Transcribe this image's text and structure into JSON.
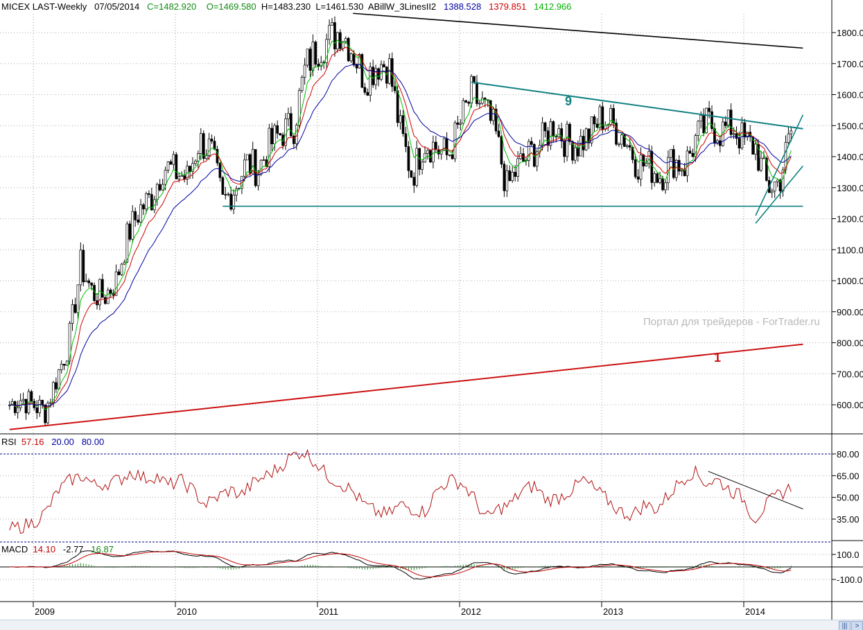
{
  "header": {
    "symbol": "MICEX LAST-Weekly",
    "date": "07/05/2014",
    "close": "C=1482.920",
    "open": "O=1469.580",
    "high": "H=1483.230",
    "low": "L=1461.530",
    "indicator": "ABillW_3LinesII2",
    "ma_blue": "1388.528",
    "ma_red": "1379.851",
    "ma_green": "1412.966"
  },
  "rsi_header": {
    "label": "RSI",
    "value": "57.16",
    "low": "20.00",
    "high": "80.00"
  },
  "macd_header": {
    "label": "MACD",
    "value": "14.10",
    "signal": "-2.77",
    "hist": "16.87"
  },
  "watermark": "Портал для трейдеров - ForTrader.ru",
  "colors": {
    "up": "#ffffff",
    "down": "#000000",
    "ma_green": "#00c000",
    "ma_red": "#d00000",
    "ma_blue": "#0000a0",
    "teal": "#108080",
    "trend_red": "#cc1010",
    "rsi": "#b01010"
  },
  "chart_data": [
    {
      "type": "candlestick",
      "title": "MICEX LAST-Weekly",
      "start": "2008-11",
      "interval": "month (sampled, weekly bars)",
      "close": [
        600,
        620,
        600,
        580,
        690,
        800,
        1050,
        960,
        950,
        1000,
        1150,
        1230,
        1270,
        1370,
        1350,
        1330,
        1450,
        1420,
        1250,
        1300,
        1380,
        1360,
        1440,
        1480,
        1500,
        1690,
        1750,
        1780,
        1810,
        1740,
        1650,
        1700,
        1700,
        1480,
        1340,
        1450,
        1430,
        1400,
        1500,
        1600,
        1560,
        1480,
        1300,
        1370,
        1410,
        1450,
        1510,
        1450,
        1440,
        1470,
        1530,
        1500,
        1460,
        1380,
        1370,
        1340,
        1390,
        1370,
        1460,
        1510,
        1480,
        1500,
        1450,
        1430,
        1300,
        1320,
        1483
      ],
      "yticks": [
        "1800.00",
        "1700.00",
        "1600.00",
        "1500.00",
        "1400.00",
        "1300.00",
        "1200.00",
        "1100.00",
        "1000.00",
        "900.00",
        "800.00",
        "700.00",
        "600.00"
      ],
      "ylim": [
        520,
        1900
      ],
      "xticks": [
        "2009",
        "2010",
        "2011",
        "2012",
        "2013",
        "2014"
      ],
      "trendlines": [
        {
          "name": "resistance-long",
          "from": [
            "2011-04",
            1862
          ],
          "to": [
            "2014-06",
            1750
          ],
          "color": "#000000"
        },
        {
          "name": "resistance-9",
          "from": [
            "2012-02",
            1640
          ],
          "to": [
            "2014-06",
            1490
          ],
          "color": "#108080",
          "label": "9"
        },
        {
          "name": "support",
          "from": [
            "2010-05",
            1240
          ],
          "to": [
            "2014-06",
            1240
          ],
          "color": "#108080"
        },
        {
          "name": "long-term-1",
          "from": [
            "2008-11",
            520
          ],
          "to": [
            "2014-06",
            795
          ],
          "color": "#cc1010",
          "label": "1"
        },
        {
          "name": "channel-low",
          "from": [
            "2014-02",
            1185
          ],
          "to": [
            "2014-06",
            1370
          ],
          "color": "#108080"
        },
        {
          "name": "channel-high",
          "from": [
            "2014-02",
            1210
          ],
          "to": [
            "2014-06",
            1535
          ],
          "color": "#108080"
        }
      ]
    },
    {
      "type": "line",
      "title": "RSI",
      "yticks": [
        "80.00",
        "65.00",
        "50.00",
        "35.00"
      ],
      "levels": [
        20,
        80
      ],
      "values": [
        28,
        30,
        33,
        40,
        55,
        62,
        65,
        58,
        60,
        62,
        68,
        63,
        65,
        58,
        62,
        55,
        45,
        50,
        55,
        52,
        60,
        65,
        70,
        78,
        82,
        75,
        65,
        60,
        55,
        45,
        40,
        38,
        45,
        42,
        40,
        55,
        62,
        60,
        50,
        35,
        42,
        45,
        55,
        58,
        48,
        50,
        55,
        62,
        55,
        48,
        40,
        38,
        45,
        42,
        52,
        62,
        68,
        60,
        62,
        55,
        50,
        35,
        45,
        52,
        57
      ],
      "trendline": {
        "from": [
          "2013-10",
          68
        ],
        "to": [
          "2014-06",
          42
        ]
      }
    },
    {
      "type": "line",
      "title": "MACD",
      "yticks": [
        "100.0",
        "-100.0"
      ]
    }
  ]
}
